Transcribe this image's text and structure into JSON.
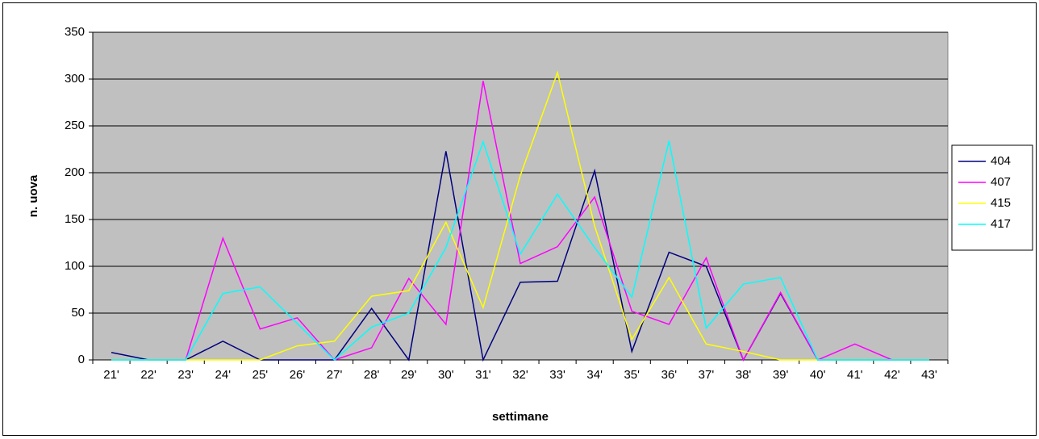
{
  "chart_data": {
    "type": "line",
    "x_label": "settimane",
    "y_label": "n. uova",
    "categories": [
      "21'",
      "22'",
      "23'",
      "24'",
      "25'",
      "26'",
      "27'",
      "28'",
      "29'",
      "30'",
      "31'",
      "32'",
      "33'",
      "34'",
      "35'",
      "36'",
      "37'",
      "38'",
      "39'",
      "40'",
      "41'",
      "42'",
      "43'"
    ],
    "series": [
      {
        "name": "404",
        "color": "#000080",
        "values": [
          8,
          0,
          0,
          20,
          0,
          0,
          0,
          55,
          0,
          223,
          0,
          83,
          84,
          202,
          9,
          115,
          100,
          0,
          71,
          0,
          0,
          0,
          0
        ]
      },
      {
        "name": "407",
        "color": "#ff00ff",
        "values": [
          0,
          0,
          0,
          130,
          33,
          45,
          0,
          13,
          87,
          38,
          298,
          103,
          121,
          174,
          52,
          38,
          109,
          0,
          72,
          0,
          17,
          0,
          0
        ]
      },
      {
        "name": "415",
        "color": "#ffff00",
        "values": [
          0,
          0,
          0,
          0,
          0,
          15,
          20,
          68,
          74,
          147,
          56,
          197,
          307,
          143,
          22,
          88,
          17,
          9,
          0,
          0,
          0,
          0,
          0
        ]
      },
      {
        "name": "417",
        "color": "#00ffff",
        "values": [
          0,
          0,
          0,
          71,
          78,
          39,
          0,
          35,
          50,
          120,
          233,
          113,
          177,
          120,
          67,
          234,
          34,
          81,
          88,
          0,
          0,
          0,
          0
        ]
      }
    ],
    "ylim": [
      0,
      350
    ],
    "yticks": [
      0,
      50,
      100,
      150,
      200,
      250,
      300,
      350
    ],
    "grid": true,
    "legend": "right"
  }
}
